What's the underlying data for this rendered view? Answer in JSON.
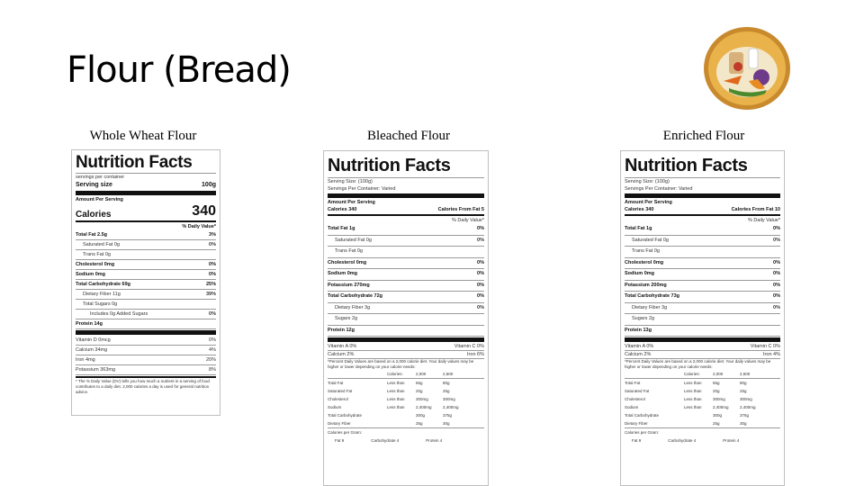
{
  "title": "Flour (Bread)",
  "columns": [
    {
      "label": "Whole Wheat Flour"
    },
    {
      "label": "Bleached Flour"
    },
    {
      "label": "Enriched Flour"
    }
  ],
  "whole_wheat": {
    "heading": "Nutrition Facts",
    "servings_per_container": "servings per container",
    "serving_size_label": "Serving size",
    "serving_size_value": "100g",
    "amount_per_serving": "Amount Per Serving",
    "calories_label": "Calories",
    "calories_value": "340",
    "dv_header": "% Daily Value*",
    "rows": [
      {
        "name": "Total Fat 2.5g",
        "dv": "3%",
        "style": "bold"
      },
      {
        "name": "Saturated Fat 0g",
        "dv": "0%",
        "style": "indent"
      },
      {
        "name": "Trans Fat 0g",
        "dv": "",
        "style": "indent"
      },
      {
        "name": "Cholesterol 0mg",
        "dv": "0%",
        "style": "bold"
      },
      {
        "name": "Sodium 0mg",
        "dv": "0%",
        "style": "bold"
      },
      {
        "name": "Total Carbohydrate 69g",
        "dv": "25%",
        "style": "bold"
      },
      {
        "name": "Dietary Fiber 11g",
        "dv": "39%",
        "style": "indent"
      },
      {
        "name": "Total Sugars 0g",
        "dv": "",
        "style": "indent"
      },
      {
        "name": "Includes 0g Added Sugars",
        "dv": "0%",
        "style": "indent2"
      },
      {
        "name": "Protein 14g",
        "dv": "",
        "style": "bold"
      }
    ],
    "vitamins": [
      {
        "name": "Vitamin D 0mcg",
        "dv": "0%"
      },
      {
        "name": "Calcium 34mg",
        "dv": "4%"
      },
      {
        "name": "Iron 4mg",
        "dv": "20%"
      },
      {
        "name": "Potassium 363mg",
        "dv": "8%"
      }
    ],
    "footnote": "* The % Daily Value (DV) tells you how much a nutrient in a serving of food contributes to a daily diet. 2,000 calories a day is used for general nutrition advice."
  },
  "bleached": {
    "heading": "Nutrition Facts",
    "serving_size": "Serving Size: (100g)",
    "servings_per_container": "Servings Per Container: Varied",
    "amount_per_serving": "Amount Per Serving",
    "calories": "Calories 340",
    "calories_from_fat": "Calories From Fat 5",
    "dv_header": "% Daily Value*",
    "rows": [
      {
        "name": "Total Fat 1g",
        "dv": "0%",
        "style": "bold"
      },
      {
        "name": "Saturated Fat 0g",
        "dv": "0%",
        "style": "indent"
      },
      {
        "name": "Trans Fat 0g",
        "dv": "",
        "style": "indent"
      },
      {
        "name": "Cholesterol 0mg",
        "dv": "0%",
        "style": "bold"
      },
      {
        "name": "Sodium 0mg",
        "dv": "0%",
        "style": "bold"
      },
      {
        "name": "Potassium 270mg",
        "dv": "0%",
        "style": "bold"
      },
      {
        "name": "Total Carbohydrate 72g",
        "dv": "0%",
        "style": "bold"
      },
      {
        "name": "Dietary Fiber 3g",
        "dv": "0%",
        "style": "indent"
      },
      {
        "name": "Sugars 2g",
        "dv": "",
        "style": "indent"
      },
      {
        "name": "Protein 12g",
        "dv": "",
        "style": "bold"
      }
    ],
    "vit_a": "Vitamin A 0%",
    "vit_c": "Vitamin C 0%",
    "calcium": "Calcium 2%",
    "iron": "Iron 6%",
    "footnote": "*Percent Daily Values are based on a 2,000 calorie diet. Your daily values may be higher or lower depending on your calorie needs:",
    "table_header": [
      "",
      "Calories:",
      "2,000",
      "2,500"
    ],
    "table": [
      [
        "Total Fat",
        "Less than",
        "65g",
        "80g"
      ],
      [
        "Saturated Fat",
        "Less than",
        "20g",
        "25g"
      ],
      [
        "Cholesterol",
        "Less than",
        "300mg",
        "300mg"
      ],
      [
        "Sodium",
        "Less than",
        "2,400mg",
        "2,400mg"
      ],
      [
        "Total Carbohydrate",
        "",
        "300g",
        "375g"
      ],
      [
        "Dietary Fiber",
        "",
        "25g",
        "30g"
      ]
    ],
    "calories_per_gram": "Calories per Gram:",
    "per_gram": [
      "Fat 9",
      "Carbohydrate 4",
      "Protein 4"
    ]
  },
  "enriched": {
    "heading": "Nutrition Facts",
    "serving_size": "Serving Size: (100g)",
    "servings_per_container": "Servings Per Container: Varied",
    "amount_per_serving": "Amount Per Serving",
    "calories": "Calories 340",
    "calories_from_fat": "Calories From Fat 10",
    "dv_header": "% Daily Value*",
    "rows": [
      {
        "name": "Total Fat 1g",
        "dv": "0%",
        "style": "bold"
      },
      {
        "name": "Saturated Fat 0g",
        "dv": "0%",
        "style": "indent"
      },
      {
        "name": "Trans Fat 0g",
        "dv": "",
        "style": "indent"
      },
      {
        "name": "Cholesterol 0mg",
        "dv": "0%",
        "style": "bold"
      },
      {
        "name": "Sodium 0mg",
        "dv": "0%",
        "style": "bold"
      },
      {
        "name": "Potassium 200mg",
        "dv": "0%",
        "style": "bold"
      },
      {
        "name": "Total Carbohydrate 73g",
        "dv": "0%",
        "style": "bold"
      },
      {
        "name": "Dietary Fiber 3g",
        "dv": "0%",
        "style": "indent"
      },
      {
        "name": "Sugars 2g",
        "dv": "",
        "style": "indent"
      },
      {
        "name": "Protein 13g",
        "dv": "",
        "style": "bold"
      }
    ],
    "vit_a": "Vitamin A 0%",
    "vit_c": "Vitamin C 0%",
    "calcium": "Calcium 2%",
    "iron": "Iron 4%",
    "footnote": "*Percent Daily Values are based on a 2,000 calorie diet. Your daily values may be higher or lower depending on your calorie needs:",
    "table_header": [
      "",
      "Calories:",
      "2,000",
      "2,500"
    ],
    "table": [
      [
        "Total Fat",
        "Less than",
        "65g",
        "80g"
      ],
      [
        "Saturated Fat",
        "Less than",
        "20g",
        "25g"
      ],
      [
        "Cholesterol",
        "Less than",
        "300mg",
        "300mg"
      ],
      [
        "Sodium",
        "Less than",
        "2,400mg",
        "2,400mg"
      ],
      [
        "Total Carbohydrate",
        "",
        "300g",
        "375g"
      ],
      [
        "Dietary Fiber",
        "",
        "25g",
        "30g"
      ]
    ],
    "calories_per_gram": "Calories per Gram:",
    "per_gram": [
      "Fat 9",
      "Carbohydrate 4",
      "Protein 4"
    ]
  }
}
